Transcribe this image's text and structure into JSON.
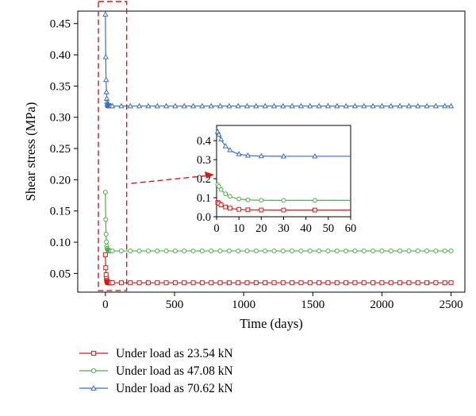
{
  "chart_data": {
    "type": "line",
    "xlabel": "Time (days)",
    "ylabel": "Shear stress (MPa)",
    "xlim": [
      -200,
      2600
    ],
    "ylim": [
      0.02,
      0.47
    ],
    "xticks": [
      0,
      500,
      1000,
      1500,
      2000,
      2500
    ],
    "yticks": [
      0.05,
      0.1,
      0.15,
      0.2,
      0.25,
      0.3,
      0.35,
      0.4,
      0.45
    ],
    "legend_position": "bottom-left",
    "series": [
      {
        "name": "Under load as 23.54 kN",
        "color": "#d7191c",
        "marker": "square",
        "initial": 0.08,
        "final": 0.035,
        "tau": 4
      },
      {
        "name": "Under load as 47.08 kN",
        "color": "#4daf4a",
        "marker": "circle",
        "initial": 0.18,
        "final": 0.086,
        "tau": 4
      },
      {
        "name": "Under load as 70.62 kN",
        "color": "#3a6fc4",
        "marker": "triangle",
        "initial": 0.465,
        "final": 0.318,
        "tau": 4
      }
    ],
    "highlight_region": {
      "x": [
        -5,
        62
      ],
      "y": [
        0.025,
        0.47
      ]
    },
    "inset": {
      "xlim": [
        0,
        60
      ],
      "ylim": [
        0,
        0.48
      ],
      "xticks": [
        0,
        10,
        20,
        30,
        40,
        50,
        60
      ],
      "yticks": [
        0,
        0.1,
        0.2,
        0.3,
        0.4
      ],
      "ytick_labels": [
        "0.0",
        "0.1",
        "0.2",
        "0.3",
        "0.4"
      ]
    }
  }
}
